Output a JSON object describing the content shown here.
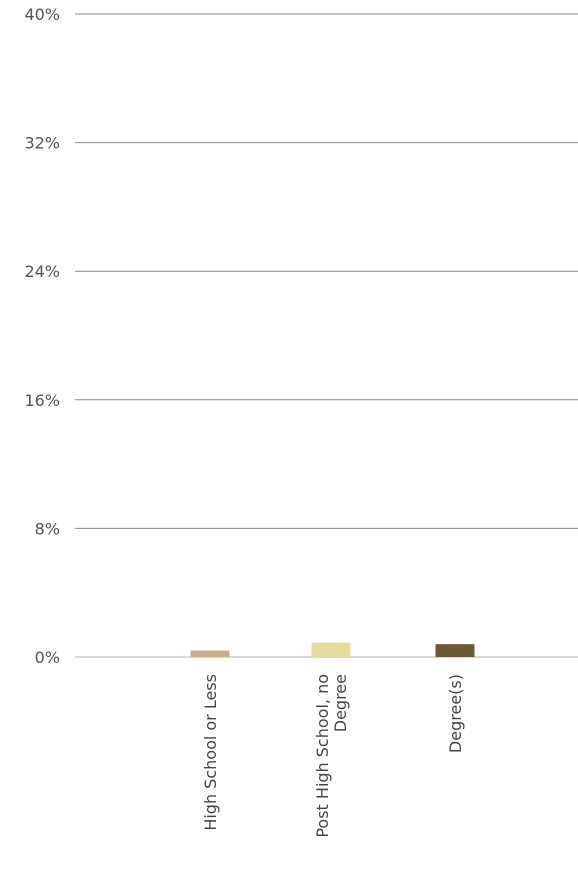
{
  "chart_data": {
    "type": "bar",
    "title": "",
    "xlabel": "",
    "ylabel": "",
    "categories": [
      "High School or Less",
      "Post High School, no Degree",
      "Degree(s)"
    ],
    "category_lines": [
      [
        "High School or Less"
      ],
      [
        "Post High School, no",
        "Degree"
      ],
      [
        "Degree(s)"
      ]
    ],
    "values": [
      0.4,
      0.9,
      0.8
    ],
    "value_unit": "%",
    "bar_colors": [
      "#c9b082",
      "#e6dc9c",
      "#6b5a34"
    ],
    "ylim": [
      0,
      40
    ],
    "yticks": [
      0,
      8,
      16,
      24,
      32,
      40
    ],
    "ytick_labels": [
      "0%",
      "8%",
      "16%",
      "24%",
      "32%",
      "40%"
    ],
    "grid": true,
    "legend": "none"
  }
}
